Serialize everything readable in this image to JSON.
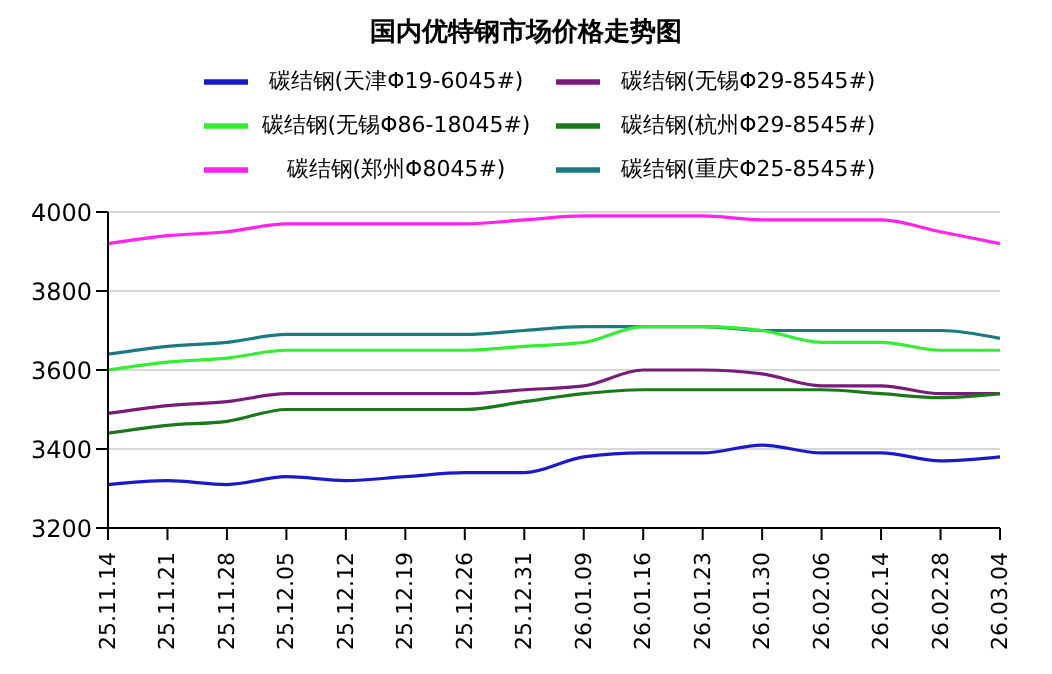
{
  "chart_data": {
    "type": "line",
    "title": "国内优特钢市场价格走势图",
    "categories": [
      "25.11.14",
      "25.11.21",
      "25.11.28",
      "25.12.05",
      "25.12.12",
      "25.12.19",
      "25.12.26",
      "25.12.31",
      "26.01.09",
      "26.01.16",
      "26.01.23",
      "26.01.30",
      "26.02.06",
      "26.02.14",
      "26.02.28",
      "26.03.04"
    ],
    "series": [
      {
        "name": "碳结钢(重庆Φ25-8545#)",
        "color": "#1a7a80",
        "values": [
          3640,
          3660,
          3670,
          3690,
          3690,
          3690,
          3690,
          3700,
          3710,
          3710,
          3710,
          3700,
          3700,
          3700,
          3700,
          3680
        ]
      },
      {
        "name": "碳结钢(无锡Φ29-8545#)",
        "color": "#7a1a7a",
        "values": [
          3490,
          3510,
          3520,
          3540,
          3540,
          3540,
          3540,
          3550,
          3560,
          3600,
          3600,
          3590,
          3560,
          3560,
          3540,
          3540
        ]
      },
      {
        "name": "碳结钢(郑州Φ8045#)",
        "color": "#ff22ee",
        "values": [
          3920,
          3940,
          3950,
          3970,
          3970,
          3970,
          3970,
          3980,
          3990,
          3990,
          3990,
          3980,
          3980,
          3980,
          3950,
          3920
        ]
      },
      {
        "name": "碳结钢(天津Φ19-6045#)",
        "color": "#1a1acc",
        "values": [
          3310,
          3320,
          3310,
          3330,
          3320,
          3330,
          3340,
          3340,
          3380,
          3390,
          3390,
          3410,
          3390,
          3390,
          3370,
          3380
        ]
      },
      {
        "name": "碳结钢(无锡Φ86-18045#)",
        "color": "#33ee33",
        "values": [
          3600,
          3620,
          3630,
          3650,
          3650,
          3650,
          3650,
          3660,
          3670,
          3710,
          3710,
          3700,
          3670,
          3670,
          3650,
          3650
        ]
      },
      {
        "name": "碳结钢(杭州Φ29-8545#)",
        "color": "#1a7a1a",
        "values": [
          3440,
          3460,
          3470,
          3500,
          3500,
          3500,
          3500,
          3520,
          3540,
          3550,
          3550,
          3550,
          3550,
          3540,
          3530,
          3540
        ]
      }
    ],
    "ylim": [
      3200,
      4000
    ],
    "yticks": [
      3200,
      3400,
      3600,
      3800,
      4000
    ],
    "grid": "y",
    "legend": "top",
    "marker": "none",
    "line_style": "solid"
  }
}
